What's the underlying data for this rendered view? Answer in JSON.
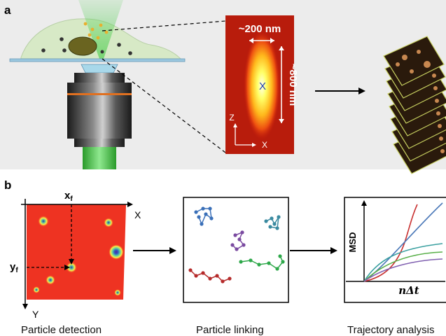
{
  "panel_a": {
    "label": "a",
    "psf": {
      "width_label": "~200 nm",
      "height_label": "~800 nm",
      "center_label": "X",
      "axis_z": "Z",
      "axis_x": "X"
    }
  },
  "panel_b": {
    "label": "b",
    "detection": {
      "axis_x": "X",
      "axis_y": "Y",
      "xf_base": "x",
      "xf_sub": "f",
      "yf_base": "y",
      "yf_sub": "f",
      "caption": "Particle detection"
    },
    "linking": {
      "caption": "Particle linking"
    },
    "trajectory": {
      "ylabel": "MSD",
      "xlabel": "nΔt",
      "caption": "Trajectory analysis"
    }
  },
  "colors": {
    "panel_a_bg": "#ececec",
    "detection_field": "#ee3322",
    "psf_bg": "#b81c0c",
    "beam_green": "#44c244",
    "cell_fill": "#d7e9c6",
    "link_blue": "#3a6fb8",
    "link_purple": "#7a4aa0",
    "link_teal": "#3a8aa0",
    "link_green": "#2ea84a",
    "link_red": "#b52a2a",
    "msd_red": "#c83030",
    "msd_blue": "#4a78b8",
    "msd_teal": "#3aa0a0",
    "msd_green": "#5ab04a",
    "msd_purple": "#8060b0"
  }
}
